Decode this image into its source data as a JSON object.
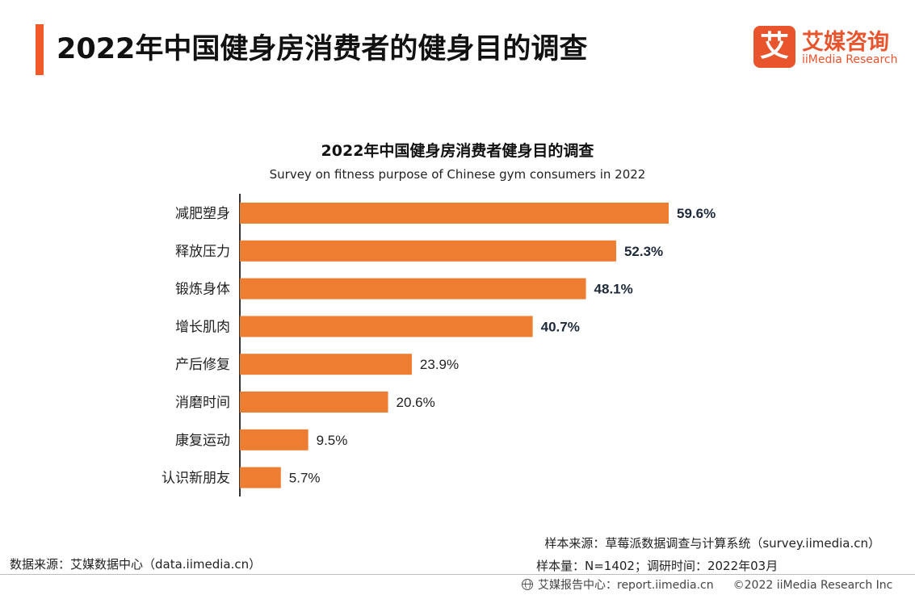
{
  "header": {
    "title": "2022年中国健身房消费者的健身目的调查",
    "accent_color": "#F05A28"
  },
  "logo": {
    "mark": "艾",
    "cn": "艾媒咨询",
    "en": "iiMedia Research",
    "color": "#E8542C"
  },
  "chart_data": {
    "type": "bar",
    "orientation": "horizontal",
    "title": "2022年中国健身房消费者健身目的调查",
    "subtitle": "Survey on fitness purpose of Chinese gym consumers in 2022",
    "categories": [
      "减肥塑身",
      "释放压力",
      "锻炼身体",
      "增长肌肉",
      "产后修复",
      "消磨时间",
      "康复运动",
      "认识新朋友"
    ],
    "values": [
      59.6,
      52.3,
      48.1,
      40.7,
      23.9,
      20.6,
      9.5,
      5.7
    ],
    "value_labels": [
      "59.6%",
      "52.3%",
      "48.1%",
      "40.7%",
      "23.9%",
      "20.6%",
      "9.5%",
      "5.7%"
    ],
    "bold_labels": [
      true,
      true,
      true,
      true,
      false,
      false,
      false,
      false
    ],
    "unit": "%",
    "xlim": [
      0,
      70
    ],
    "bar_color": "#ED7D31",
    "grid": false,
    "legend": "none"
  },
  "footer": {
    "sample_source": "样本来源：草莓派数据调查与计算系统（survey.iimedia.cn）",
    "sample_size": "样本量：N=1402；调研时间：2022年03月",
    "data_source": "数据来源：艾媒数据中心（data.iimedia.cn）",
    "report_center": "艾媒报告中心：report.iimedia.cn",
    "copyright": "©2022  iiMedia Research  Inc"
  }
}
